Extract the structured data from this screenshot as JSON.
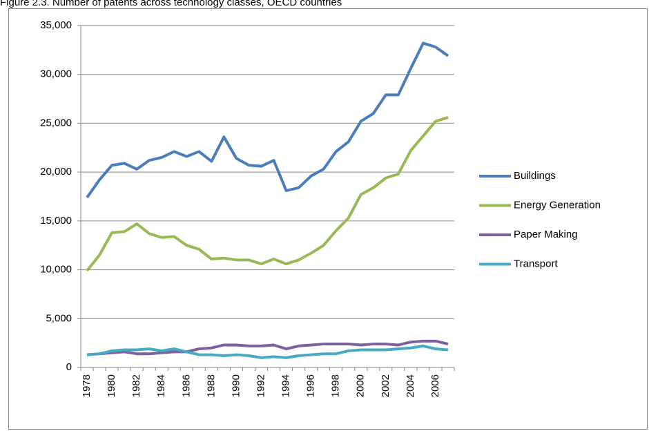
{
  "chart_data": {
    "type": "line",
    "title": "Figure 2.3. Number of patents across technology classes, OECD countries",
    "categories": [
      "1978",
      null,
      "1980",
      null,
      "1982",
      null,
      "1984",
      null,
      "1986",
      null,
      "1988",
      null,
      "1990",
      null,
      "1992",
      null,
      "1994",
      null,
      "1996",
      null,
      "1998",
      null,
      "2000",
      null,
      "2002",
      null,
      "2004",
      null,
      "2006",
      null
    ],
    "series": [
      {
        "name": "Buildings",
        "color": "#4a7ebb",
        "values": [
          17400,
          19200,
          20700,
          20900,
          20300,
          21200,
          21500,
          22100,
          21600,
          22100,
          21100,
          23600,
          21400,
          20700,
          20600,
          21200,
          18100,
          18400,
          19600,
          20300,
          22100,
          23100,
          25200,
          26000,
          27900,
          27900,
          30600,
          33200,
          32800,
          31900
        ]
      },
      {
        "name": "Energy Generation",
        "color": "#98b954",
        "values": [
          9900,
          11500,
          13800,
          13900,
          14700,
          13700,
          13300,
          13400,
          12500,
          12100,
          11100,
          11200,
          11000,
          11000,
          10600,
          11100,
          10600,
          11000,
          11700,
          12500,
          14000,
          15300,
          17700,
          18400,
          19400,
          19800,
          22200,
          23700,
          25200,
          25600
        ]
      },
      {
        "name": "Paper Making",
        "color": "#7d60a0",
        "values": [
          1300,
          1400,
          1500,
          1600,
          1400,
          1400,
          1500,
          1600,
          1600,
          1900,
          2000,
          2300,
          2300,
          2200,
          2200,
          2300,
          1900,
          2200,
          2300,
          2400,
          2400,
          2400,
          2300,
          2400,
          2400,
          2300,
          2600,
          2700,
          2700,
          2400
        ]
      },
      {
        "name": "Transport",
        "color": "#46aac5",
        "values": [
          1300,
          1400,
          1700,
          1800,
          1800,
          1900,
          1700,
          1900,
          1600,
          1300,
          1300,
          1200,
          1300,
          1200,
          1000,
          1100,
          1000,
          1200,
          1300,
          1400,
          1400,
          1700,
          1800,
          1800,
          1800,
          1900,
          2000,
          2200,
          1900,
          1800
        ]
      }
    ],
    "ylim": [
      0,
      35000
    ],
    "yticks": [
      0,
      {
        "value": 5000,
        "label": "5,000"
      },
      {
        "value": 10000,
        "label": "10,000"
      },
      {
        "value": 15000,
        "label": "15,000"
      },
      {
        "value": 20000,
        "label": "20,000"
      },
      {
        "value": 25000,
        "label": "25,000"
      },
      {
        "value": 30000,
        "label": "30,000"
      },
      {
        "value": 35000,
        "label": "35,000"
      }
    ],
    "grid": true
  }
}
